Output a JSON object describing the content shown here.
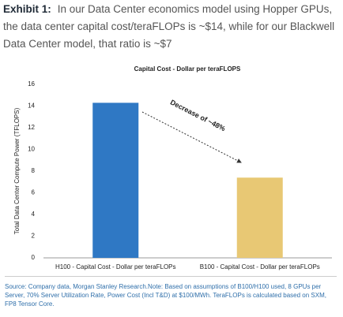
{
  "exhibit": {
    "label": "Exhibit 1:",
    "text": "In our Data Center economics model using Hopper GPUs, the data center capital cost/teraFLOPs is ~$14, while for our Blackwell Data Center model, that ratio is ~$7"
  },
  "chart_data": {
    "type": "bar",
    "title": "Capital Cost - Dollar per teraFLOPS",
    "y_label": "Total Data Center Compute Power (TFLOPS)",
    "categories": [
      "H100 - Capital Cost - Dollar per teraFLOPs",
      "B100 - Capital Cost - Dollar per teraFLOPs"
    ],
    "values": [
      14.3,
      7.4
    ],
    "colors": [
      "#2f78c4",
      "#e8c874"
    ],
    "ylim": [
      0,
      16
    ],
    "yticks": [
      0,
      2,
      4,
      6,
      8,
      10,
      12,
      14,
      16
    ],
    "annotation": "Decrease of ~48%"
  },
  "source": "Source: Company data, Morgan Stanley Research.Note: Based on assumptions of B100/H100 used, 8 GPUs per Server, 70% Server Utilization Rate, Power Cost (Incl T&D) at $100/MWh. TeraFLOPs is calculated based on SXM, FP8 Tensor Core."
}
